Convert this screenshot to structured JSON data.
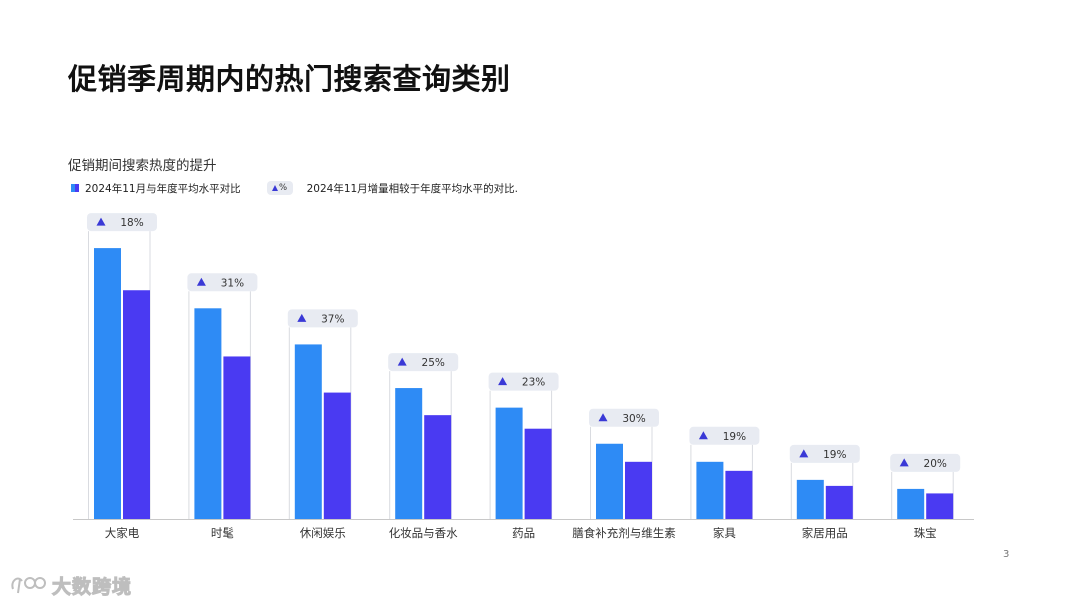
{
  "slide": {
    "title": "促销季周期内的热门搜索查询类别",
    "page_number": "3"
  },
  "watermark": {
    "text": "大数跨境"
  },
  "colors": {
    "series_avg": "#2e8bf5",
    "series_growth": "#4a3af2",
    "badge_bg": "#e8ebf2",
    "badge_triangle": "#3a39d6",
    "axis": "#c8c8c8"
  },
  "chart_data": {
    "type": "bar",
    "title": "促销期间搜索热度的提升",
    "legend": {
      "series_label": "2024年11月与年度平均水平对比",
      "badge_label": "%",
      "badge_description": "2024年11月增量相较于年度平均水平的对比."
    },
    "categories": [
      "大家电",
      "时髦",
      "休闲娱乐",
      "化妆品与香水",
      "药品",
      "膳食补充剂与维生素",
      "家具",
      "家居用品",
      "珠宝"
    ],
    "series": [
      {
        "values": [
          9.0,
          7.0,
          5.8,
          4.35,
          3.7,
          2.5,
          1.9,
          1.3,
          1.0
        ]
      },
      {
        "values": [
          7.6,
          5.4,
          4.2,
          3.45,
          3.0,
          1.9,
          1.6,
          1.1,
          0.85
        ]
      }
    ],
    "badges": [
      "18%",
      "31%",
      "37%",
      "25%",
      "23%",
      "30%",
      "19%",
      "19%",
      "20%"
    ],
    "ylim": [
      0,
      10
    ]
  }
}
